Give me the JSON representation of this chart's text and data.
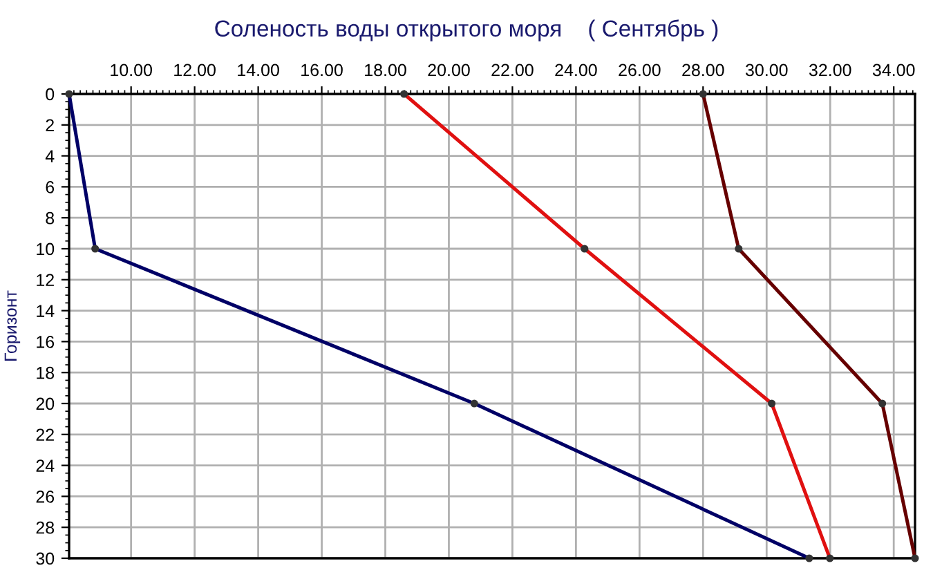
{
  "chart_data": {
    "type": "line",
    "title": "Соленость воды открытого моря    ( Сентябрь )",
    "ylabel": "Горизонт",
    "xlim": [
      8.05,
      34.67
    ],
    "xticks": [
      {
        "value": 10,
        "label": "10.00"
      },
      {
        "value": 12,
        "label": "12.00"
      },
      {
        "value": 14,
        "label": "14.00"
      },
      {
        "value": 16,
        "label": "16.00"
      },
      {
        "value": 18,
        "label": "18.00"
      },
      {
        "value": 20,
        "label": "20.00"
      },
      {
        "value": 22,
        "label": "22.00"
      },
      {
        "value": 24,
        "label": "24.00"
      },
      {
        "value": 26,
        "label": "26.00"
      },
      {
        "value": 28,
        "label": "28.00"
      },
      {
        "value": 30,
        "label": "30.00"
      },
      {
        "value": 32,
        "label": "32.00"
      },
      {
        "value": 34,
        "label": "34.00"
      }
    ],
    "ylim": [
      30,
      0
    ],
    "yticks": [
      0,
      2,
      4,
      6,
      8,
      10,
      12,
      14,
      16,
      18,
      20,
      22,
      24,
      26,
      28,
      30
    ],
    "grid": true,
    "marker": "circle",
    "line_style": "solid",
    "series": [
      {
        "color": "#000066",
        "x": [
          8.05,
          8.87,
          20.8,
          31.34
        ],
        "values": [
          0,
          10,
          20,
          30
        ]
      },
      {
        "color": "#e01010",
        "x": [
          18.59,
          24.27,
          30.16,
          31.99
        ],
        "values": [
          0,
          10,
          20,
          30
        ]
      },
      {
        "color": "#660000",
        "x": [
          28.0,
          29.12,
          33.64,
          34.67
        ],
        "values": [
          0,
          10,
          20,
          30
        ]
      }
    ]
  }
}
